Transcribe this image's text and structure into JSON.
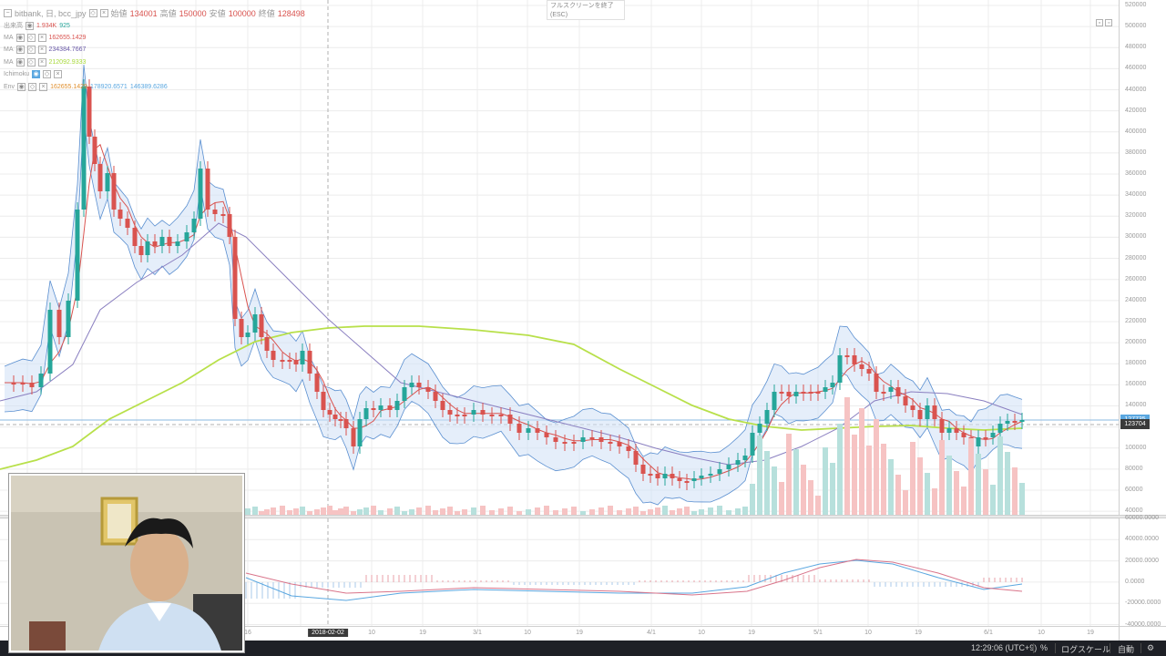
{
  "legend": {
    "symbol": "bitbank, 日, bcc_jpy",
    "ohlc": [
      {
        "label": "始値",
        "value": "134001"
      },
      {
        "label": "高値",
        "value": "150000"
      },
      {
        "label": "安値",
        "value": "100000"
      },
      {
        "label": "終値",
        "value": "128498"
      }
    ],
    "volume": {
      "label": "出来高",
      "value1": "1.934K",
      "value2": "925"
    },
    "ma_rows": [
      {
        "label": "MA",
        "value": "162655.1429",
        "color": "#d9534f"
      },
      {
        "label": "MA",
        "value": "234384.7667",
        "color": "#6a5aa8"
      },
      {
        "label": "MA",
        "value": "212092.9333",
        "color": "#a8d93a"
      }
    ],
    "ichimoku": {
      "label": "Ichimoku"
    },
    "env": {
      "label": "Env",
      "v1": "162655.1429",
      "v2": "178920.6571",
      "v3": "146389.6286"
    }
  },
  "fullscreen_tip": {
    "line1": "フルスクリーンを終了",
    "line2": "(ESC)"
  },
  "price_axis": [
    "520000",
    "500000",
    "480000",
    "460000",
    "440000",
    "420000",
    "400000",
    "380000",
    "360000",
    "340000",
    "320000",
    "300000",
    "280000",
    "260000",
    "240000",
    "220000",
    "200000",
    "180000",
    "160000",
    "140000",
    "120000",
    "100000",
    "80000",
    "60000",
    "40000"
  ],
  "macd_axis": [
    "60000.0000",
    "40000.0000",
    "20000.0000",
    "0.0000",
    "-20000.0000",
    "-40000.0000"
  ],
  "price_labels": [
    {
      "text": "127735",
      "color": "#5aa7e0"
    },
    {
      "text": "123704",
      "color": "#3a3a3a"
    }
  ],
  "time_axis": [
    "16",
    "10",
    "19",
    "3/1",
    "10",
    "19",
    "4/1",
    "10",
    "19",
    "5/1",
    "10",
    "19",
    "6/1",
    "10",
    "19"
  ],
  "cursor_date": "2018-02-02",
  "bottom_bar": {
    "clock": "12:29:06 (UTC+9)",
    "percent": "%",
    "log": "ログスケール",
    "auto": "自動",
    "gear_icon": "gear-icon"
  },
  "colors": {
    "up": "#26a69a",
    "down": "#d9534f",
    "ma_short": "#d9534f",
    "ma_mid": "#8a7fc0",
    "ma_long": "#b8e04a",
    "band": "#5a8fd0",
    "macd": "#5aa7e0",
    "signal": "#d9748a"
  }
}
